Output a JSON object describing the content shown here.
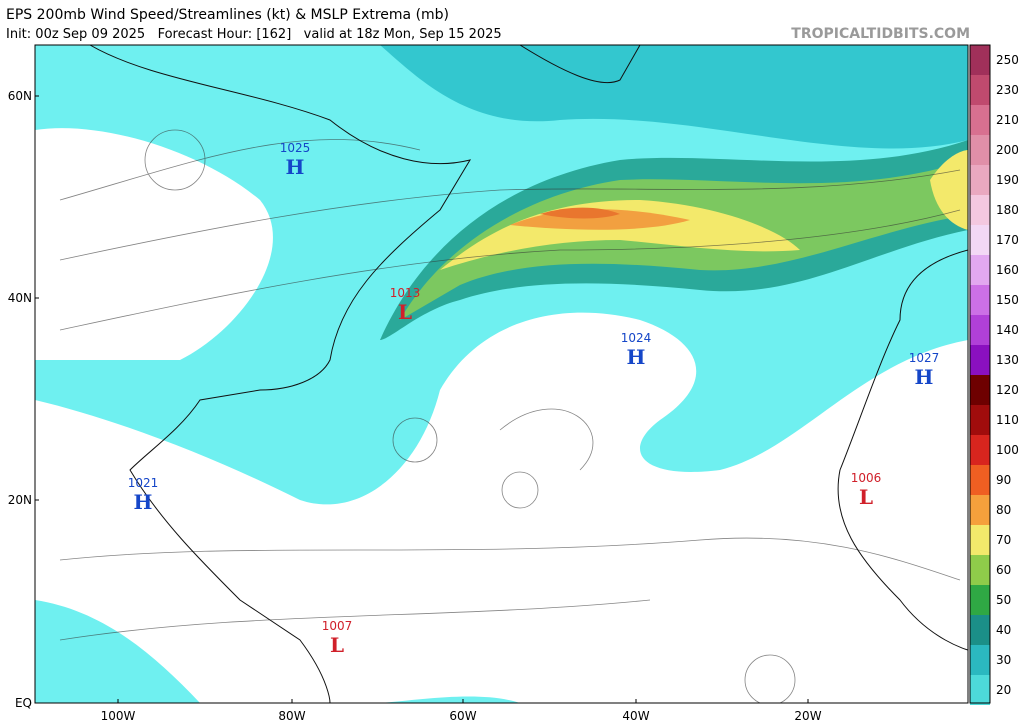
{
  "header": {
    "title": "EPS 200mb Wind Speed/Streamlines (kt) & MSLP Extrema (mb)",
    "subtitle": "Init: 00z Sep 09 2025   Forecast Hour: [162]   valid at 18z Mon, Sep 15 2025",
    "credit": "TROPICALTIDBITS.COM"
  },
  "map": {
    "lat_labels": [
      "60N",
      "40N",
      "20N",
      "EQ"
    ],
    "lon_labels": [
      "100W",
      "80W",
      "60W",
      "40W",
      "20W"
    ],
    "systems": [
      {
        "symbol": "H",
        "pressure": "1025"
      },
      {
        "symbol": "H",
        "pressure": "1021"
      },
      {
        "symbol": "L",
        "pressure": "1013"
      },
      {
        "symbol": "H",
        "pressure": "1024"
      },
      {
        "symbol": "H",
        "pressure": "1027"
      },
      {
        "symbol": "L",
        "pressure": "1006"
      },
      {
        "symbol": "L",
        "pressure": "1007"
      }
    ]
  },
  "colorbar": {
    "labels": [
      250,
      230,
      210,
      200,
      190,
      180,
      170,
      160,
      150,
      140,
      130,
      120,
      110,
      100,
      90,
      80,
      70,
      60,
      50,
      40,
      30,
      20
    ]
  }
}
